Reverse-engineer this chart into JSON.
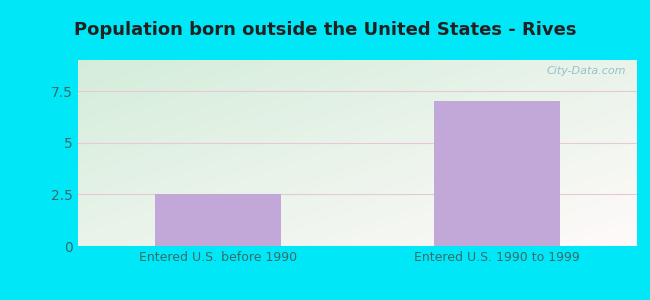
{
  "title": "Population born outside the United States - Rives",
  "categories": [
    "Entered U.S. before 1990",
    "Entered U.S. 1990 to 1999"
  ],
  "values": [
    2.5,
    7.0
  ],
  "bar_color": "#c2a8d8",
  "ylim": [
    0,
    9
  ],
  "yticks": [
    0,
    2.5,
    5,
    7.5
  ],
  "bg_top_left": "#d4edda",
  "bg_bottom_right": "#e8f8f0",
  "bg_top_right": "#e0f0f8",
  "grid_color": "#e8c8d8",
  "title_fontsize": 13,
  "tick_label_fontsize": 10,
  "xlabel_fontsize": 9,
  "tick_color": "#3a6a6a",
  "outer_color": "#00e8f8",
  "watermark": "City-Data.com"
}
